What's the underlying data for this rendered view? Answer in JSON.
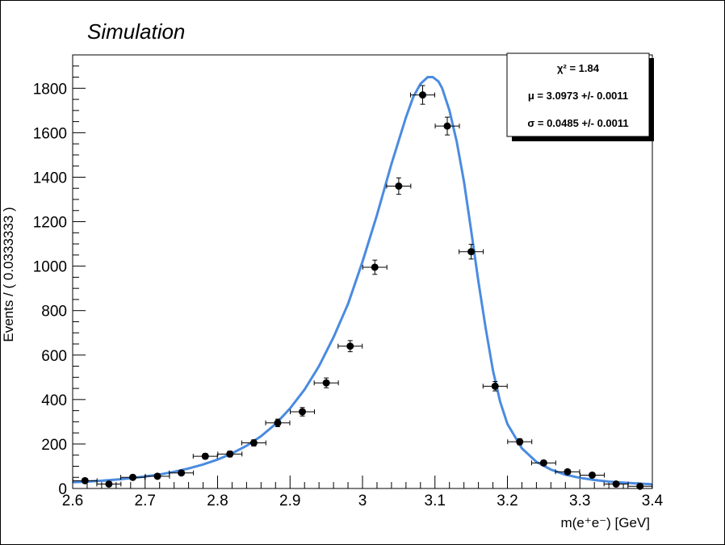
{
  "chart_data": {
    "type": "scatter",
    "label": "Simulation",
    "xlabel": "m(e⁺e⁻) [GeV]",
    "ylabel": "Events / ( 0.0333333 )",
    "xlim": [
      2.6,
      3.4
    ],
    "ylim": [
      0,
      1950
    ],
    "x_ticks": [
      2.6,
      2.7,
      2.8,
      2.9,
      3.0,
      3.1,
      3.2,
      3.3,
      3.4
    ],
    "x_tick_labels": [
      "2.6",
      "2.7",
      "2.8",
      "2.9",
      "3",
      "3.1",
      "3.2",
      "3.3",
      "3.4"
    ],
    "y_ticks": [
      0,
      200,
      400,
      600,
      800,
      1000,
      1200,
      1400,
      1600,
      1800
    ],
    "y_tick_labels": [
      "0",
      "200",
      "400",
      "600",
      "800",
      "1000",
      "1200",
      "1400",
      "1600",
      "1800"
    ],
    "series": [
      {
        "kind": "data-points",
        "bin_half_width": 0.01667,
        "x": [
          2.617,
          2.65,
          2.683,
          2.717,
          2.75,
          2.783,
          2.817,
          2.85,
          2.883,
          2.917,
          2.95,
          2.983,
          3.017,
          3.05,
          3.083,
          3.117,
          3.15,
          3.183,
          3.217,
          3.25,
          3.283,
          3.317,
          3.35,
          3.383
        ],
        "y": [
          35,
          20,
          50,
          55,
          70,
          145,
          155,
          205,
          295,
          345,
          475,
          640,
          995,
          1360,
          1770,
          1630,
          1065,
          460,
          210,
          115,
          75,
          60,
          20,
          10
        ],
        "yerr": [
          6,
          5,
          7,
          8,
          9,
          12,
          13,
          14,
          17,
          19,
          22,
          25,
          32,
          37,
          42,
          40,
          33,
          21,
          14,
          11,
          9,
          8,
          5,
          3
        ],
        "color": "#000000"
      },
      {
        "kind": "fit-curve",
        "color": "#4a8be0",
        "x": [
          2.6,
          2.62,
          2.64,
          2.66,
          2.68,
          2.7,
          2.72,
          2.74,
          2.76,
          2.78,
          2.8,
          2.82,
          2.84,
          2.86,
          2.88,
          2.9,
          2.92,
          2.94,
          2.96,
          2.98,
          3.0,
          3.02,
          3.04,
          3.06,
          3.07,
          3.08,
          3.09,
          3.097,
          3.105,
          3.11,
          3.12,
          3.13,
          3.14,
          3.15,
          3.16,
          3.17,
          3.18,
          3.19,
          3.2,
          3.22,
          3.24,
          3.26,
          3.28,
          3.3,
          3.32,
          3.34,
          3.36,
          3.38,
          3.4
        ],
        "y": [
          28,
          31,
          35,
          40,
          46,
          54,
          63,
          75,
          90,
          108,
          130,
          158,
          192,
          235,
          290,
          360,
          445,
          550,
          680,
          830,
          1020,
          1230,
          1460,
          1670,
          1760,
          1820,
          1850,
          1850,
          1830,
          1800,
          1700,
          1560,
          1380,
          1160,
          930,
          720,
          530,
          390,
          290,
          180,
          120,
          85,
          62,
          48,
          38,
          31,
          26,
          22,
          19
        ]
      }
    ],
    "stats_box": {
      "chi2": "χ² = 1.84",
      "mu": "μ = 3.0973 +/- 0.0011",
      "sigma": "σ = 0.0485 +/- 0.0011"
    },
    "grid": false,
    "legend": "top-right stats box"
  }
}
